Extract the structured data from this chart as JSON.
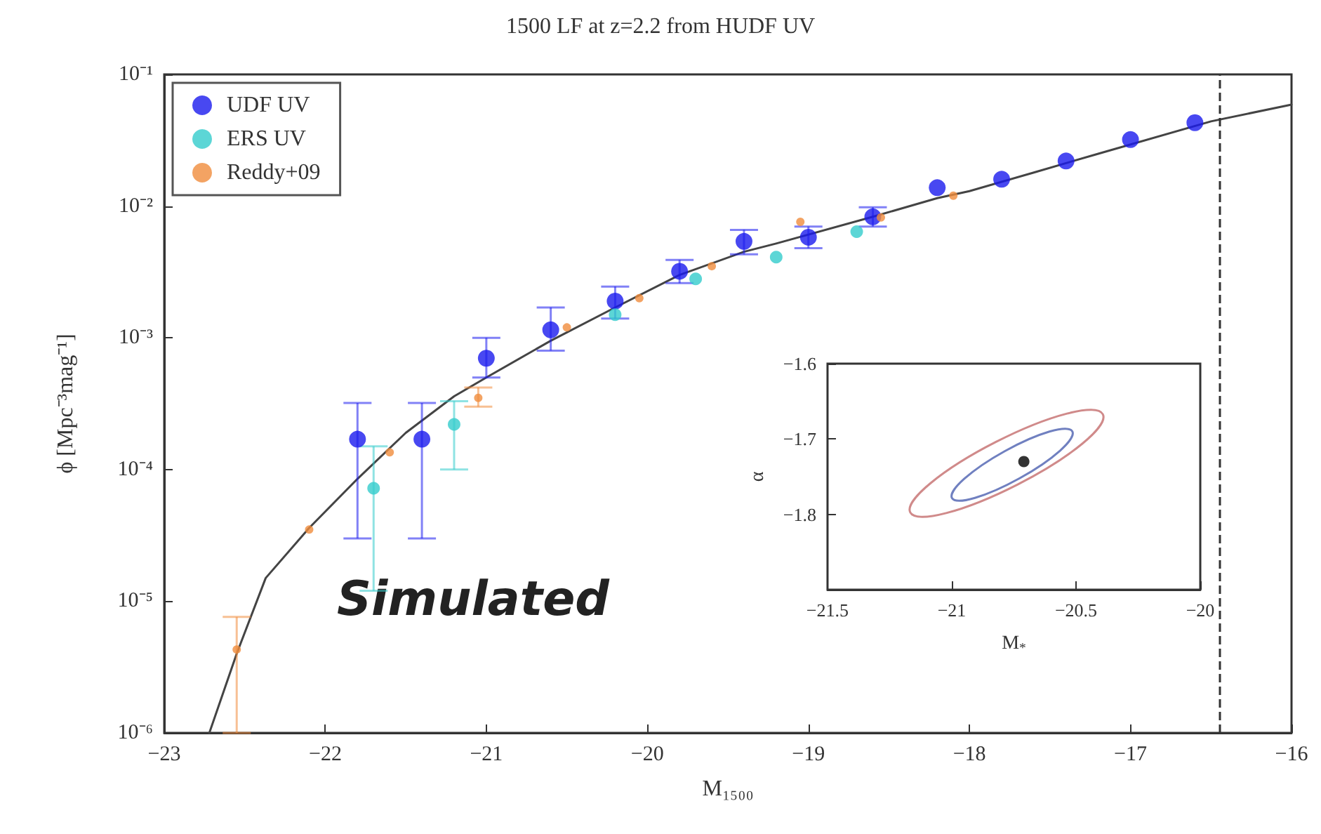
{
  "chart_data": [
    {
      "type": "scatter",
      "title": "1500 LF at z=2.2 from HUDF UV",
      "xlabel": "M₁₅₀₀",
      "ylabel": "ϕ [Mpc⁻³mag⁻¹]",
      "log": "y",
      "xlim": [
        -23,
        -16
      ],
      "xticks": [
        -23,
        -22,
        -21,
        -20,
        -19,
        -18,
        -17,
        -16
      ],
      "ylim": [
        1e-06,
        0.1
      ],
      "yticks": [
        {
          "value": 1e-06,
          "label": "10⁻⁶"
        },
        {
          "value": 1e-05,
          "label": "10⁻⁵"
        },
        {
          "value": 0.0001,
          "label": "10⁻⁴"
        },
        {
          "value": 0.001,
          "label": "10⁻³"
        },
        {
          "value": 0.01,
          "label": "10⁻²"
        },
        {
          "value": 0.1,
          "label": "10⁻¹"
        }
      ],
      "legend": "top left",
      "marker": "circle",
      "annotations": [
        "Simulated"
      ],
      "ref_lines": [
        {
          "axis": "x",
          "value": -16.45,
          "line_style": "dashed",
          "color": "#333333"
        }
      ],
      "series": [
        {
          "type": "line",
          "marker": "none",
          "color": "#444444",
          "x": [
            -22.72,
            -22.55,
            -22.37,
            -22.1,
            -21.8,
            -21.5,
            -21.2,
            -21.0,
            -20.6,
            -20.2,
            -19.8,
            -19.4,
            -19.2,
            -18.6,
            -18.2,
            -18.0,
            -17.6,
            -17.2,
            -16.5,
            -16.0
          ],
          "values": [
            1e-06,
            4e-06,
            1.5e-05,
            3.6e-05,
            8.5e-05,
            0.00019,
            0.00036,
            0.0005,
            0.00095,
            0.0017,
            0.003,
            0.0045,
            0.0052,
            0.0083,
            0.0115,
            0.013,
            0.018,
            0.025,
            0.044,
            0.059
          ]
        },
        {
          "name": "UDF UV",
          "color": "#1a1aee",
          "x": [
            -21.8,
            -21.4,
            -21.0,
            -20.6,
            -20.2,
            -19.8,
            -19.4,
            -19.0,
            -18.6,
            -18.2,
            -17.8,
            -17.4,
            -17.0,
            -16.6
          ],
          "values": [
            0.00017,
            0.00017,
            0.0007,
            0.00115,
            0.0019,
            0.0032,
            0.0054,
            0.0058,
            0.0083,
            0.0138,
            0.016,
            0.022,
            0.032,
            0.043
          ],
          "errors": [
            [
              3e-05,
              0.00032
            ],
            [
              3e-05,
              0.00032
            ],
            [
              0.0005,
              0.001
            ],
            [
              0.0008,
              0.0017
            ],
            [
              0.0014,
              0.00245
            ],
            [
              0.0026,
              0.0039
            ],
            [
              0.0043,
              0.0066
            ],
            [
              0.0048,
              0.007
            ],
            [
              0.007,
              0.0098
            ],
            null,
            null,
            null,
            null,
            null
          ]
        },
        {
          "name": "ERS UV",
          "color": "#33cccc",
          "x": [
            -21.7,
            -21.2,
            -20.2,
            -19.7,
            -19.2,
            -18.7
          ],
          "values": [
            7.2e-05,
            0.00022,
            0.0015,
            0.0028,
            0.0041,
            0.0064
          ],
          "errors": [
            [
              1.2e-05,
              0.00015
            ],
            [
              0.0001,
              0.00033
            ],
            null,
            null,
            null,
            null
          ]
        },
        {
          "name": "Reddy+09",
          "color": "#f08c3c",
          "x": [
            -22.55,
            -22.1,
            -21.6,
            -21.05,
            -20.5,
            -20.05,
            -19.6,
            -19.05,
            -18.55,
            -18.1
          ],
          "values": [
            4.3e-06,
            3.5e-05,
            0.000135,
            0.00035,
            0.0012,
            0.002,
            0.0035,
            0.0076,
            0.0082,
            0.012
          ],
          "errors": [
            [
              1e-06,
              7.6e-06
            ],
            null,
            null,
            [
              0.0003,
              0.00042
            ],
            null,
            null,
            null,
            null,
            null,
            null
          ]
        }
      ]
    },
    {
      "type": "scatter",
      "xlabel": "M$_{*}$",
      "ylabel": "α",
      "xlim": [
        -21.5,
        -20
      ],
      "xticks": [
        -21.5,
        -21,
        -20.5,
        -20
      ],
      "ylim": [
        -1.9,
        -1.6
      ],
      "yticks": [
        -1.8,
        -1.7,
        -1.6
      ],
      "series": [
        {
          "color": "#000000",
          "marker": "circle",
          "x": [
            -20.71
          ],
          "values": [
            -1.73
          ]
        }
      ]
    }
  ]
}
